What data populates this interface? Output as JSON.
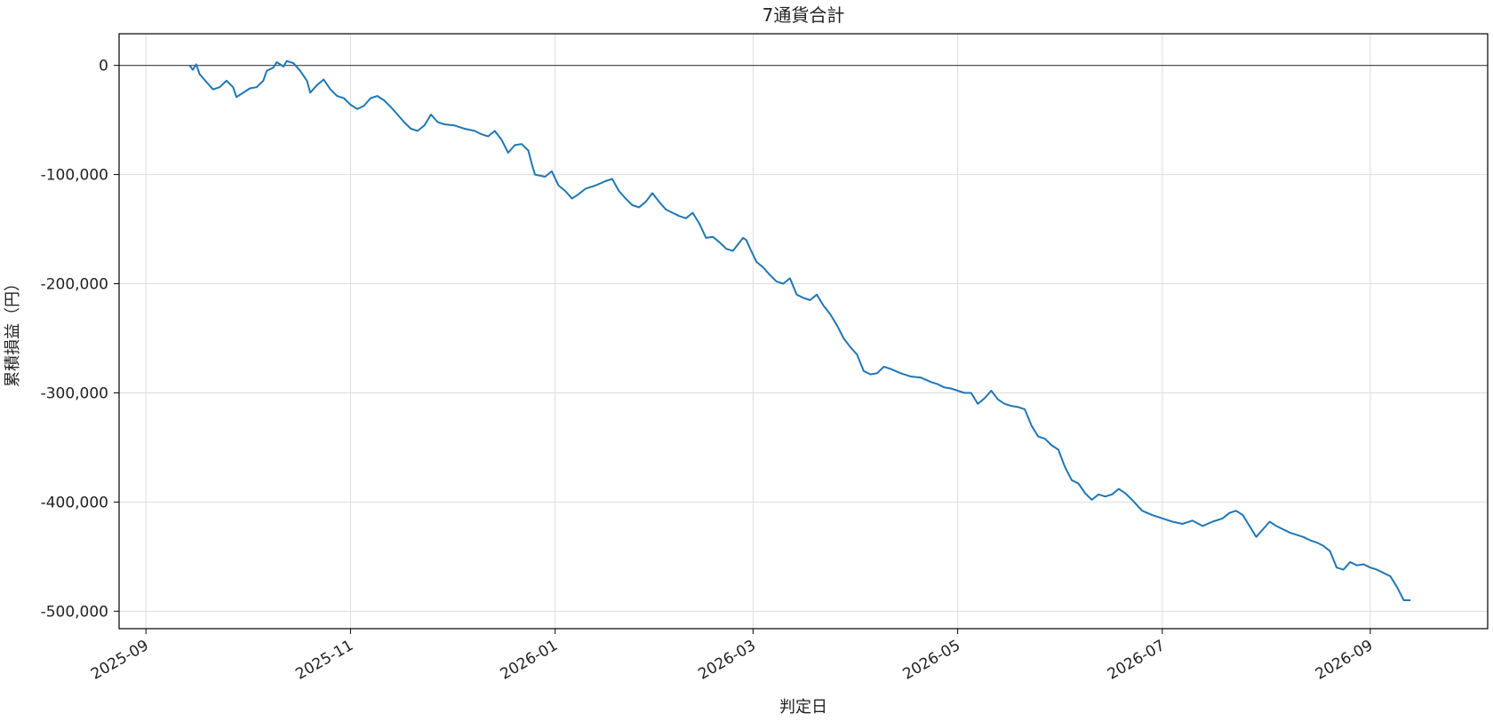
{
  "chart_data": {
    "type": "line",
    "title": "7通貨合計",
    "xlabel": "判定日",
    "ylabel": "累積損益（円）",
    "x_range": [
      "2025-08-24",
      "2026-10-06"
    ],
    "ylim": [
      -516000,
      29000
    ],
    "grid": true,
    "legend": "none",
    "reference_line": {
      "y": 0,
      "color": "#555555"
    },
    "x_ticks": [
      {
        "date": "2025-09-01",
        "label": "2025-09"
      },
      {
        "date": "2025-11-01",
        "label": "2025-11"
      },
      {
        "date": "2026-01-01",
        "label": "2026-01"
      },
      {
        "date": "2026-03-01",
        "label": "2026-03"
      },
      {
        "date": "2026-05-01",
        "label": "2026-05"
      },
      {
        "date": "2026-07-01",
        "label": "2026-07"
      },
      {
        "date": "2026-09-01",
        "label": "2026-09"
      }
    ],
    "y_ticks": [
      {
        "value": 0,
        "label": "0"
      },
      {
        "value": -100000,
        "label": "-100,000"
      },
      {
        "value": -200000,
        "label": "-200,000"
      },
      {
        "value": -300000,
        "label": "-300,000"
      },
      {
        "value": -400000,
        "label": "-400,000"
      },
      {
        "value": -500000,
        "label": "-500,000"
      }
    ],
    "series": [
      {
        "color": "#1f77b4",
        "points": [
          [
            "2025-09-14",
            0
          ],
          [
            "2025-09-15",
            -4000
          ],
          [
            "2025-09-16",
            1000
          ],
          [
            "2025-09-17",
            -8000
          ],
          [
            "2025-09-19",
            -15000
          ],
          [
            "2025-09-21",
            -22000
          ],
          [
            "2025-09-23",
            -20000
          ],
          [
            "2025-09-25",
            -14000
          ],
          [
            "2025-09-27",
            -20000
          ],
          [
            "2025-09-28",
            -29000
          ],
          [
            "2025-09-30",
            -25000
          ],
          [
            "2025-10-02",
            -21000
          ],
          [
            "2025-10-04",
            -20000
          ],
          [
            "2025-10-06",
            -14000
          ],
          [
            "2025-10-07",
            -5000
          ],
          [
            "2025-10-09",
            -2000
          ],
          [
            "2025-10-10",
            3000
          ],
          [
            "2025-10-12",
            -1000
          ],
          [
            "2025-10-13",
            4000
          ],
          [
            "2025-10-15",
            2000
          ],
          [
            "2025-10-17",
            -5000
          ],
          [
            "2025-10-19",
            -14000
          ],
          [
            "2025-10-20",
            -25000
          ],
          [
            "2025-10-22",
            -18000
          ],
          [
            "2025-10-24",
            -13000
          ],
          [
            "2025-10-26",
            -22000
          ],
          [
            "2025-10-28",
            -28000
          ],
          [
            "2025-10-30",
            -30000
          ],
          [
            "2025-11-01",
            -36000
          ],
          [
            "2025-11-03",
            -40000
          ],
          [
            "2025-11-05",
            -37000
          ],
          [
            "2025-11-07",
            -30000
          ],
          [
            "2025-11-09",
            -28000
          ],
          [
            "2025-11-11",
            -32000
          ],
          [
            "2025-11-13",
            -38000
          ],
          [
            "2025-11-15",
            -45000
          ],
          [
            "2025-11-17",
            -52000
          ],
          [
            "2025-11-19",
            -58000
          ],
          [
            "2025-11-21",
            -60000
          ],
          [
            "2025-11-23",
            -55000
          ],
          [
            "2025-11-25",
            -45000
          ],
          [
            "2025-11-27",
            -52000
          ],
          [
            "2025-11-29",
            -54000
          ],
          [
            "2025-12-02",
            -55000
          ],
          [
            "2025-12-05",
            -58000
          ],
          [
            "2025-12-08",
            -60000
          ],
          [
            "2025-12-10",
            -63000
          ],
          [
            "2025-12-12",
            -65000
          ],
          [
            "2025-12-14",
            -60000
          ],
          [
            "2025-12-16",
            -68000
          ],
          [
            "2025-12-18",
            -80000
          ],
          [
            "2025-12-20",
            -73000
          ],
          [
            "2025-12-22",
            -72000
          ],
          [
            "2025-12-24",
            -78000
          ],
          [
            "2025-12-25",
            -90000
          ],
          [
            "2025-12-26",
            -100000
          ],
          [
            "2025-12-29",
            -102000
          ],
          [
            "2025-12-31",
            -97000
          ],
          [
            "2026-01-02",
            -110000
          ],
          [
            "2026-01-04",
            -115000
          ],
          [
            "2026-01-06",
            -122000
          ],
          [
            "2026-01-08",
            -118000
          ],
          [
            "2026-01-10",
            -113000
          ],
          [
            "2026-01-13",
            -110000
          ],
          [
            "2026-01-16",
            -106000
          ],
          [
            "2026-01-18",
            -104000
          ],
          [
            "2026-01-20",
            -115000
          ],
          [
            "2026-01-22",
            -122000
          ],
          [
            "2026-01-24",
            -128000
          ],
          [
            "2026-01-26",
            -130000
          ],
          [
            "2026-01-28",
            -125000
          ],
          [
            "2026-01-30",
            -117000
          ],
          [
            "2026-02-01",
            -125000
          ],
          [
            "2026-02-03",
            -132000
          ],
          [
            "2026-02-05",
            -135000
          ],
          [
            "2026-02-07",
            -138000
          ],
          [
            "2026-02-09",
            -140000
          ],
          [
            "2026-02-11",
            -135000
          ],
          [
            "2026-02-13",
            -145000
          ],
          [
            "2026-02-15",
            -158000
          ],
          [
            "2026-02-17",
            -157000
          ],
          [
            "2026-02-19",
            -162000
          ],
          [
            "2026-02-21",
            -168000
          ],
          [
            "2026-02-23",
            -170000
          ],
          [
            "2026-02-25",
            -162000
          ],
          [
            "2026-02-26",
            -158000
          ],
          [
            "2026-02-27",
            -160000
          ],
          [
            "2026-02-28",
            -167000
          ],
          [
            "2026-03-02",
            -180000
          ],
          [
            "2026-03-04",
            -185000
          ],
          [
            "2026-03-06",
            -192000
          ],
          [
            "2026-03-08",
            -198000
          ],
          [
            "2026-03-10",
            -200000
          ],
          [
            "2026-03-12",
            -195000
          ],
          [
            "2026-03-14",
            -210000
          ],
          [
            "2026-03-16",
            -213000
          ],
          [
            "2026-03-18",
            -215000
          ],
          [
            "2026-03-20",
            -210000
          ],
          [
            "2026-03-22",
            -220000
          ],
          [
            "2026-03-24",
            -228000
          ],
          [
            "2026-03-26",
            -238000
          ],
          [
            "2026-03-28",
            -250000
          ],
          [
            "2026-03-30",
            -258000
          ],
          [
            "2026-04-01",
            -265000
          ],
          [
            "2026-04-03",
            -280000
          ],
          [
            "2026-04-05",
            -283000
          ],
          [
            "2026-04-07",
            -282000
          ],
          [
            "2026-04-09",
            -276000
          ],
          [
            "2026-04-11",
            -278000
          ],
          [
            "2026-04-14",
            -282000
          ],
          [
            "2026-04-17",
            -285000
          ],
          [
            "2026-04-20",
            -286000
          ],
          [
            "2026-04-23",
            -290000
          ],
          [
            "2026-04-25",
            -292000
          ],
          [
            "2026-04-27",
            -295000
          ],
          [
            "2026-04-29",
            -296000
          ],
          [
            "2026-05-01",
            -298000
          ],
          [
            "2026-05-03",
            -300000
          ],
          [
            "2026-05-05",
            -300000
          ],
          [
            "2026-05-07",
            -310000
          ],
          [
            "2026-05-09",
            -305000
          ],
          [
            "2026-05-11",
            -298000
          ],
          [
            "2026-05-13",
            -306000
          ],
          [
            "2026-05-15",
            -310000
          ],
          [
            "2026-05-17",
            -312000
          ],
          [
            "2026-05-19",
            -313000
          ],
          [
            "2026-05-21",
            -315000
          ],
          [
            "2026-05-23",
            -330000
          ],
          [
            "2026-05-25",
            -340000
          ],
          [
            "2026-05-27",
            -342000
          ],
          [
            "2026-05-29",
            -348000
          ],
          [
            "2026-05-31",
            -352000
          ],
          [
            "2026-06-02",
            -368000
          ],
          [
            "2026-06-04",
            -380000
          ],
          [
            "2026-06-06",
            -383000
          ],
          [
            "2026-06-08",
            -392000
          ],
          [
            "2026-06-10",
            -398000
          ],
          [
            "2026-06-12",
            -393000
          ],
          [
            "2026-06-14",
            -395000
          ],
          [
            "2026-06-16",
            -393000
          ],
          [
            "2026-06-18",
            -388000
          ],
          [
            "2026-06-20",
            -392000
          ],
          [
            "2026-06-22",
            -398000
          ],
          [
            "2026-06-25",
            -408000
          ],
          [
            "2026-06-28",
            -412000
          ],
          [
            "2026-07-01",
            -415000
          ],
          [
            "2026-07-04",
            -418000
          ],
          [
            "2026-07-07",
            -420000
          ],
          [
            "2026-07-10",
            -417000
          ],
          [
            "2026-07-13",
            -422000
          ],
          [
            "2026-07-16",
            -418000
          ],
          [
            "2026-07-19",
            -415000
          ],
          [
            "2026-07-21",
            -410000
          ],
          [
            "2026-07-23",
            -408000
          ],
          [
            "2026-07-25",
            -412000
          ],
          [
            "2026-07-27",
            -422000
          ],
          [
            "2026-07-29",
            -432000
          ],
          [
            "2026-07-31",
            -425000
          ],
          [
            "2026-08-02",
            -418000
          ],
          [
            "2026-08-04",
            -422000
          ],
          [
            "2026-08-06",
            -425000
          ],
          [
            "2026-08-08",
            -428000
          ],
          [
            "2026-08-10",
            -430000
          ],
          [
            "2026-08-12",
            -432000
          ],
          [
            "2026-08-14",
            -435000
          ],
          [
            "2026-08-16",
            -437000
          ],
          [
            "2026-08-18",
            -440000
          ],
          [
            "2026-08-20",
            -445000
          ],
          [
            "2026-08-22",
            -460000
          ],
          [
            "2026-08-24",
            -462000
          ],
          [
            "2026-08-26",
            -455000
          ],
          [
            "2026-08-28",
            -458000
          ],
          [
            "2026-08-30",
            -457000
          ],
          [
            "2026-09-01",
            -460000
          ],
          [
            "2026-09-03",
            -462000
          ],
          [
            "2026-09-05",
            -465000
          ],
          [
            "2026-09-07",
            -468000
          ],
          [
            "2026-09-09",
            -478000
          ],
          [
            "2026-09-11",
            -490000
          ],
          [
            "2026-09-13",
            -490000
          ]
        ]
      }
    ]
  }
}
